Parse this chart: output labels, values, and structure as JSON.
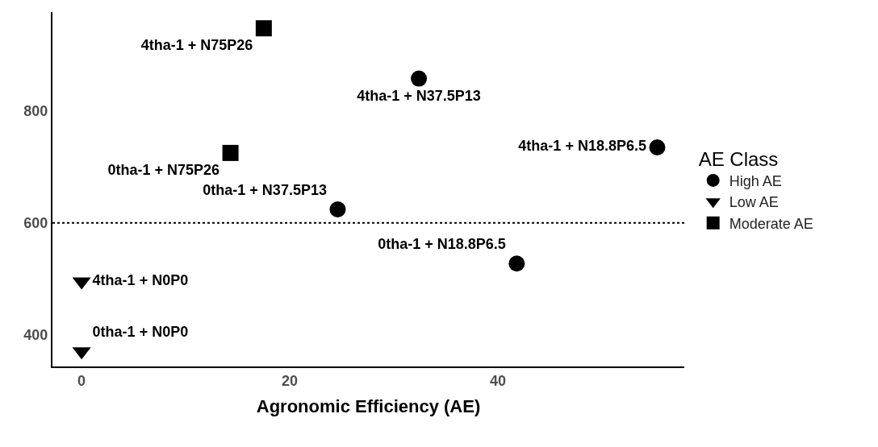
{
  "chart_data": {
    "type": "scatter",
    "xlabel": "Agronomic Efficiency (AE)",
    "legend_title": "AE Class",
    "legend": "right",
    "xlim": [
      -2.8,
      57.9
    ],
    "ylim": [
      343,
      977
    ],
    "xticks": [
      0,
      20,
      40
    ],
    "yticks": [
      400,
      600,
      800
    ],
    "series": [
      {
        "name": "High AE",
        "color": "#000000",
        "marker": "circle",
        "x": [
          32.4,
          55.3,
          24.6,
          41.8
        ],
        "values": [
          858,
          735,
          624,
          527
        ],
        "value_labels": [
          "4tha-1 + N37.5P13",
          "4tha-1 + N18.8P6.5",
          "0tha-1 + N37.5P13",
          "0tha-1 + N18.8P6.5"
        ]
      },
      {
        "name": "Low AE",
        "color": "#000000",
        "marker": "triangle",
        "x": [
          0,
          0
        ],
        "values": [
          495,
          370
        ],
        "value_labels": [
          "4tha-1 + N0P0",
          "0tha-1 + N0P0"
        ]
      },
      {
        "name": "Moderate AE",
        "color": "#000000",
        "marker": "square",
        "x": [
          17.5,
          14.3
        ],
        "values": [
          948,
          725
        ],
        "value_labels": [
          "4tha-1 + N75P26",
          "0tha-1 + N75P26"
        ]
      }
    ],
    "ref_lines": [
      {
        "axis": "y",
        "value": 600,
        "color": "#000000",
        "line_style": "dotted"
      }
    ]
  }
}
